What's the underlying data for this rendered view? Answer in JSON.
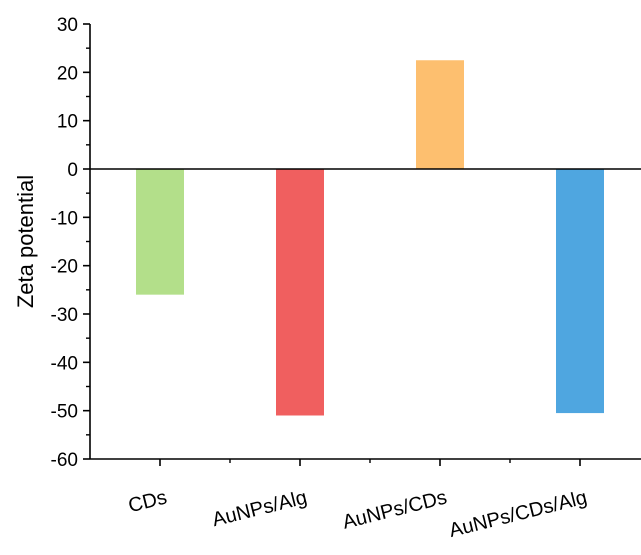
{
  "chart_data": {
    "type": "bar",
    "title": "",
    "xlabel": "",
    "ylabel": "Zeta potential",
    "ylim": [
      -60,
      30
    ],
    "y_ticks": [
      30,
      20,
      10,
      0,
      -10,
      -20,
      -30,
      -40,
      -50,
      -60
    ],
    "categories": [
      "CDs",
      "AuNPs/Alg",
      "AuNPs/CDs",
      "AuNPs/CDs/Alg"
    ],
    "values": [
      -26,
      -51,
      22.5,
      -50.5
    ],
    "colors": [
      "#b3df8a",
      "#f05f5f",
      "#fdbf6f",
      "#4fa6e0"
    ],
    "grid": false,
    "legend": "none"
  }
}
